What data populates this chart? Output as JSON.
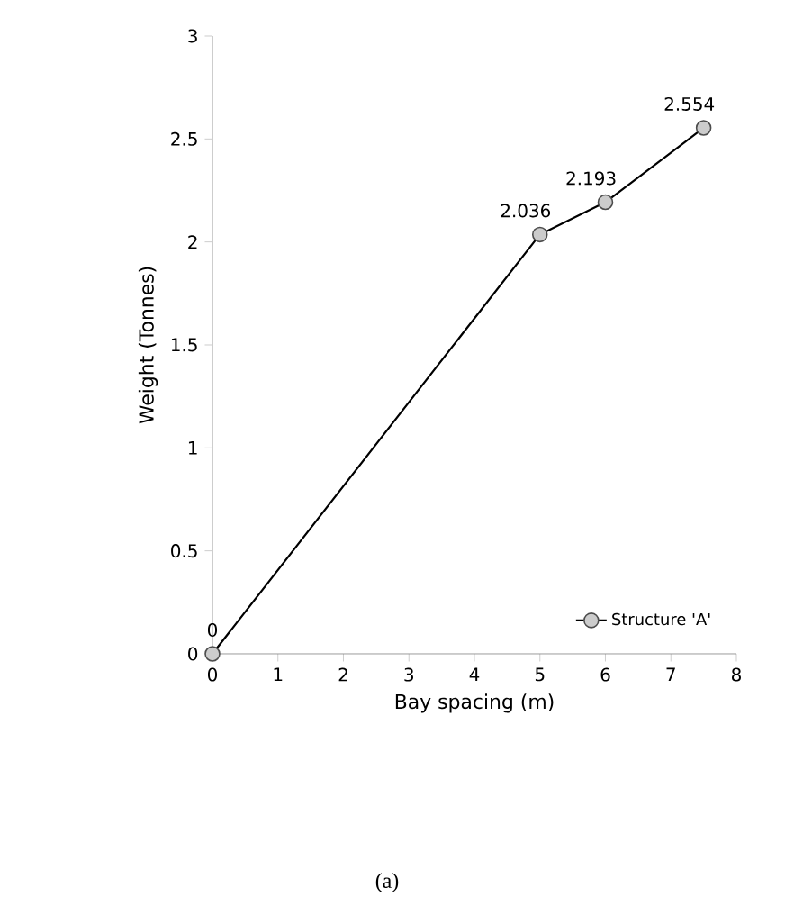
{
  "chart_data": {
    "type": "line",
    "xlabel": "Bay spacing (m)",
    "ylabel": "Weight (Tonnes)",
    "x": [
      0,
      5,
      6,
      7.5
    ],
    "series": [
      {
        "name": "Structure 'A'",
        "color": "#000000",
        "values": [
          0,
          2.036,
          2.193,
          2.554
        ]
      }
    ],
    "xlim": [
      0,
      8
    ],
    "xticks": [
      0,
      1,
      2,
      3,
      4,
      5,
      6,
      7,
      8
    ],
    "ylim": [
      0,
      3
    ],
    "yticks": [
      0,
      0.5,
      1,
      1.5,
      2,
      2.5,
      3
    ],
    "grid": false,
    "legend": "bottom right",
    "marker": "circle",
    "line_style": "solid",
    "data_labels": true,
    "annotations": [
      "(a)"
    ]
  }
}
